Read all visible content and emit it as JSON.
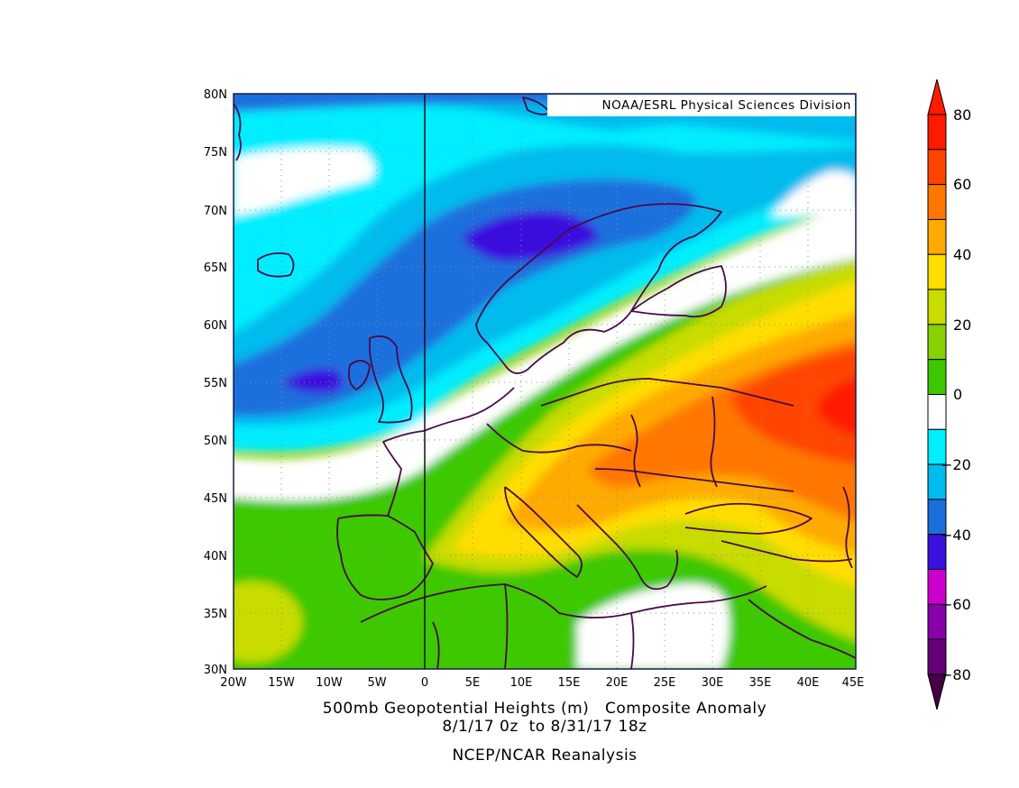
{
  "map": {
    "credit": "NOAA/ESRL Physical Sciences Division",
    "caption_line1": "500mb Geopotential Heights (m)   Composite Anomaly",
    "caption_line2": "8/1/17 0z  to 8/31/17 18z",
    "caption_line3": "NCEP/NCAR Reanalysis",
    "region": "Europe",
    "lat_labels": [
      "80N",
      "75N",
      "70N",
      "65N",
      "60N",
      "55N",
      "50N",
      "45N",
      "40N",
      "35N",
      "30N"
    ],
    "lon_labels": [
      "20W",
      "15W",
      "10W",
      "5W",
      "0",
      "5E",
      "10E",
      "15E",
      "20E",
      "25E",
      "30E",
      "35E",
      "40E",
      "45E"
    ],
    "grid": true
  },
  "colorbar": {
    "labels": [
      "80",
      "60",
      "40",
      "20",
      "0",
      "−20",
      "−40",
      "−60",
      "−80"
    ],
    "colors_top_to_bottom": [
      "#ff1a00",
      "#ff4400",
      "#ff7700",
      "#ffaa00",
      "#ffdd00",
      "#c8dc00",
      "#88d000",
      "#3ec800",
      "#ffffff",
      "#00eeff",
      "#00bbee",
      "#1a6fdd",
      "#3a10dd",
      "#cc00cc",
      "#8800aa",
      "#660077"
    ],
    "arrow_top_color": "#ff1a00",
    "arrow_bottom_color": "#440044"
  }
}
